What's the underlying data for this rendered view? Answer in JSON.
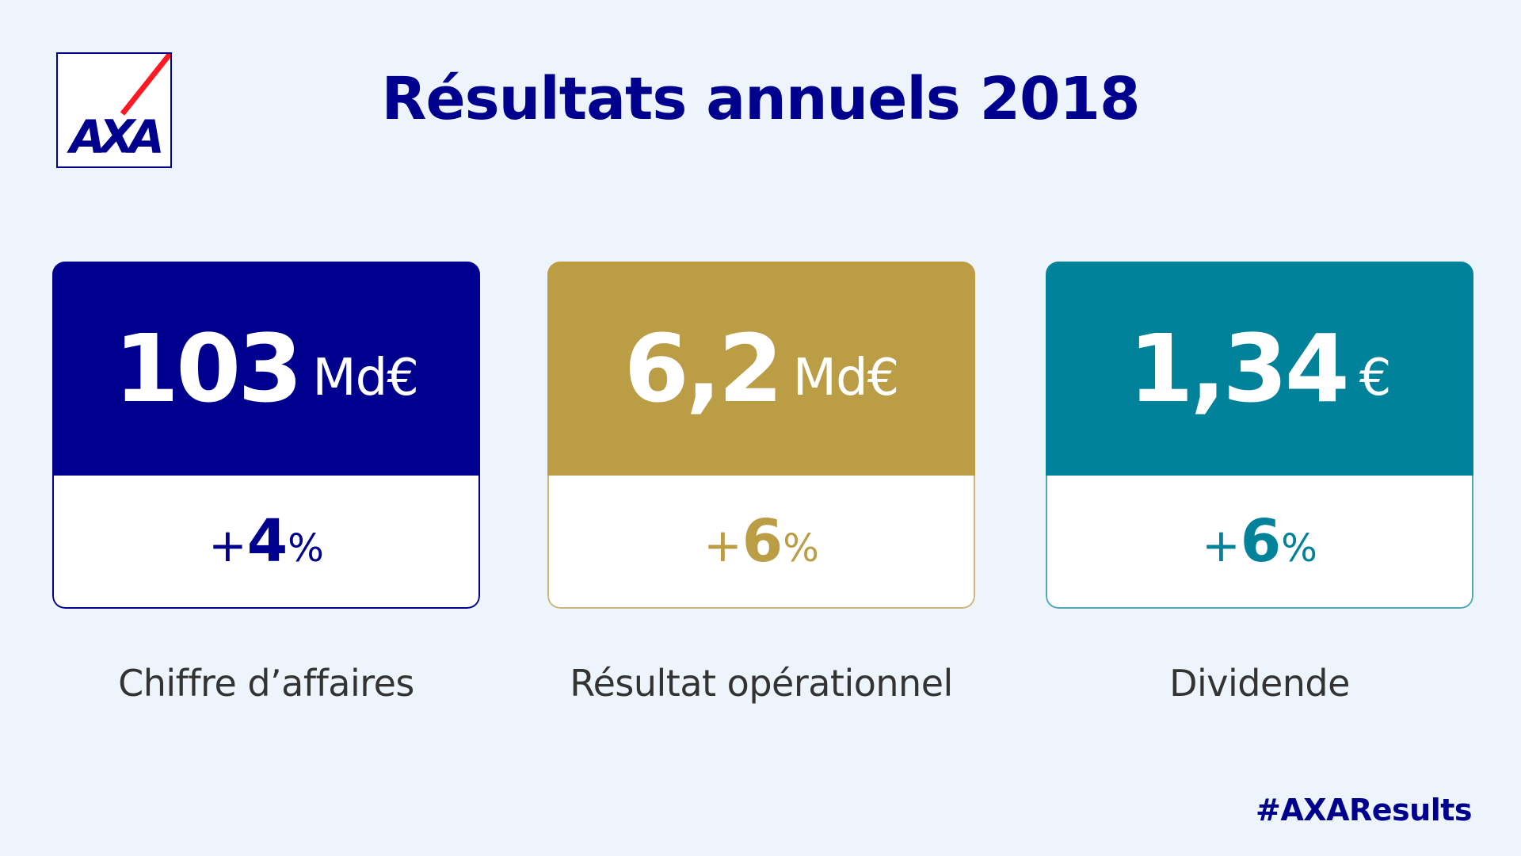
{
  "logo": {
    "text": "AXA",
    "colors": {
      "blue": "#00008F",
      "red": "#FF1721"
    }
  },
  "title": "Résultats annuels 2018",
  "cards": [
    {
      "value": "103",
      "unit": "Md€",
      "change_sign": "+",
      "change_value": "4",
      "change_unit": "%",
      "label": "Chiffre d’affaires",
      "color": "#00008F"
    },
    {
      "value": "6,2",
      "unit": "Md€",
      "change_sign": "+",
      "change_value": "6",
      "change_unit": "%",
      "label": "Résultat opérationnel",
      "color": "#BB9D46"
    },
    {
      "value": "1,34",
      "unit": "€",
      "change_sign": "+",
      "change_value": "6",
      "change_unit": "%",
      "label": "Dividende",
      "color": "#00839A"
    }
  ],
  "hashtag": "#AXAResults"
}
